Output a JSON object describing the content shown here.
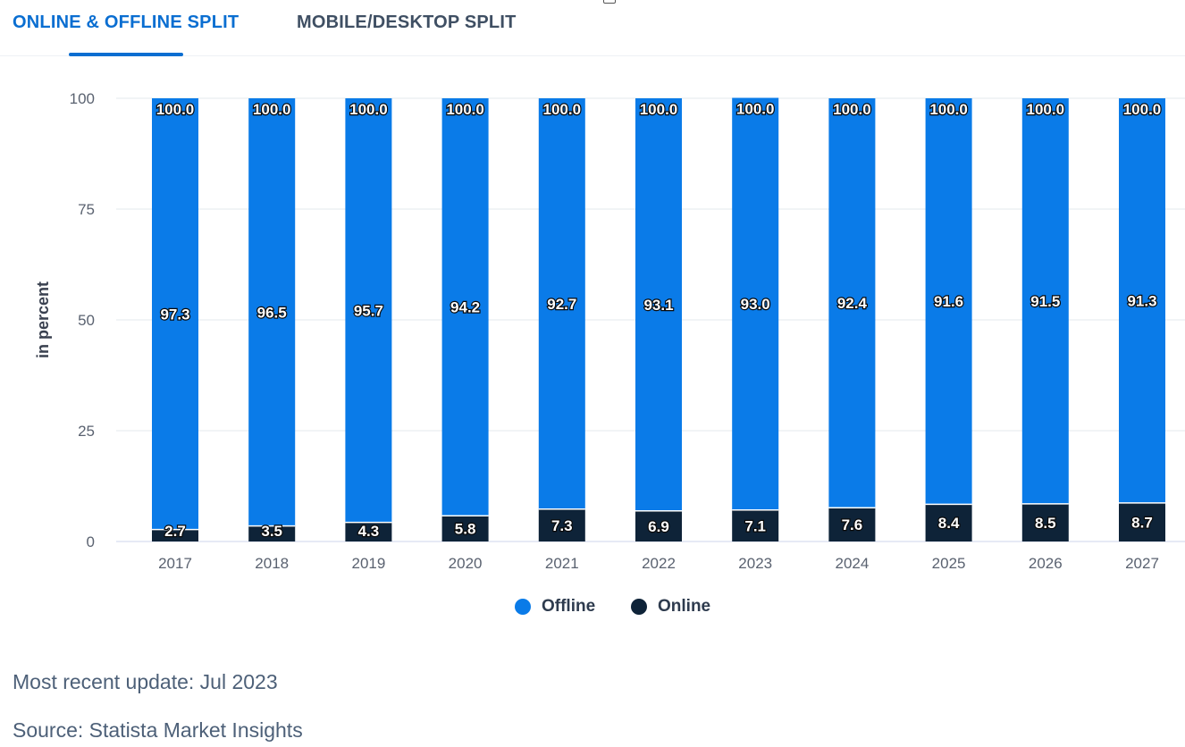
{
  "tabs": [
    {
      "label": "ONLINE & OFFLINE SPLIT",
      "active": true
    },
    {
      "label": "MOBILE/DESKTOP SPLIT",
      "active": false
    }
  ],
  "colors": {
    "accent": "#0a6ed1",
    "offline": "#0a7be8",
    "online": "#0e2338",
    "grid": "#e3e8ee",
    "axis_text": "#5a6270"
  },
  "chart_data": {
    "type": "bar",
    "stacked": true,
    "categories": [
      "2017",
      "2018",
      "2019",
      "2020",
      "2021",
      "2022",
      "2023",
      "2024",
      "2025",
      "2026",
      "2027"
    ],
    "series": [
      {
        "name": "Online",
        "values": [
          2.7,
          3.5,
          4.3,
          5.8,
          7.3,
          6.9,
          7.1,
          7.6,
          8.4,
          8.5,
          8.7
        ]
      },
      {
        "name": "Offline",
        "values": [
          97.3,
          96.5,
          95.7,
          94.2,
          92.7,
          93.1,
          93.0,
          92.4,
          91.6,
          91.5,
          91.3
        ]
      }
    ],
    "totals": [
      100.0,
      100.0,
      100.0,
      100.0,
      100.0,
      100.0,
      100.0,
      100.0,
      100.0,
      100.0,
      100.0
    ],
    "ylabel": "in percent",
    "ylim": [
      0,
      100
    ],
    "yticks": [
      0,
      25,
      50,
      75,
      100
    ],
    "grid": true,
    "legend_position": "bottom-center"
  },
  "legend": [
    {
      "label": "Offline"
    },
    {
      "label": "Online"
    }
  ],
  "footer": {
    "update": "Most recent update: Jul 2023",
    "source": "Source: Statista Market Insights"
  }
}
